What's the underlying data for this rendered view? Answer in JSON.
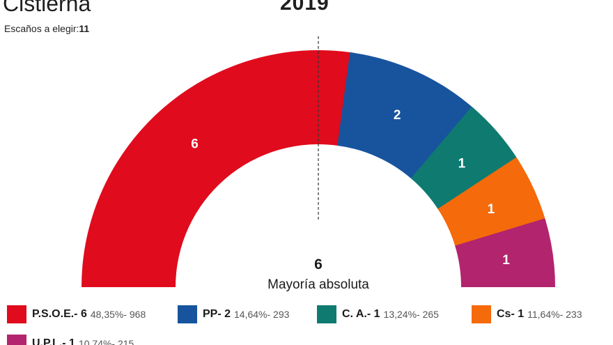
{
  "header": {
    "title": "Cistierna",
    "year": "2019",
    "seats_prefix": "Escaños a elegir:",
    "seats_total": "11"
  },
  "chart_data": {
    "type": "pie",
    "layout": "semicircle-parliament",
    "total_seats": 11,
    "majority_value": "6",
    "majority_label": "Mayoría absoluta",
    "series": [
      {
        "name": "P.S.O.E.",
        "label": "P.S.O.E.- 6",
        "seats": 6,
        "value_label": "6",
        "stats": "48,35%- 968",
        "color": "#e00b1c"
      },
      {
        "name": "PP",
        "label": "PP- 2",
        "seats": 2,
        "value_label": "2",
        "stats": "14,64%- 293",
        "color": "#17549d"
      },
      {
        "name": "C. A.",
        "label": "C. A.- 1",
        "seats": 1,
        "value_label": "1",
        "stats": "13,24%- 265",
        "color": "#0f7b70"
      },
      {
        "name": "Cs",
        "label": "Cs- 1",
        "seats": 1,
        "value_label": "1",
        "stats": "11,64%- 233",
        "color": "#f56a0a"
      },
      {
        "name": "U.P.L.",
        "label": "U.P.L.- 1",
        "seats": 1,
        "value_label": "1",
        "stats": "10,74%- 215",
        "color": "#b2246d"
      }
    ]
  }
}
